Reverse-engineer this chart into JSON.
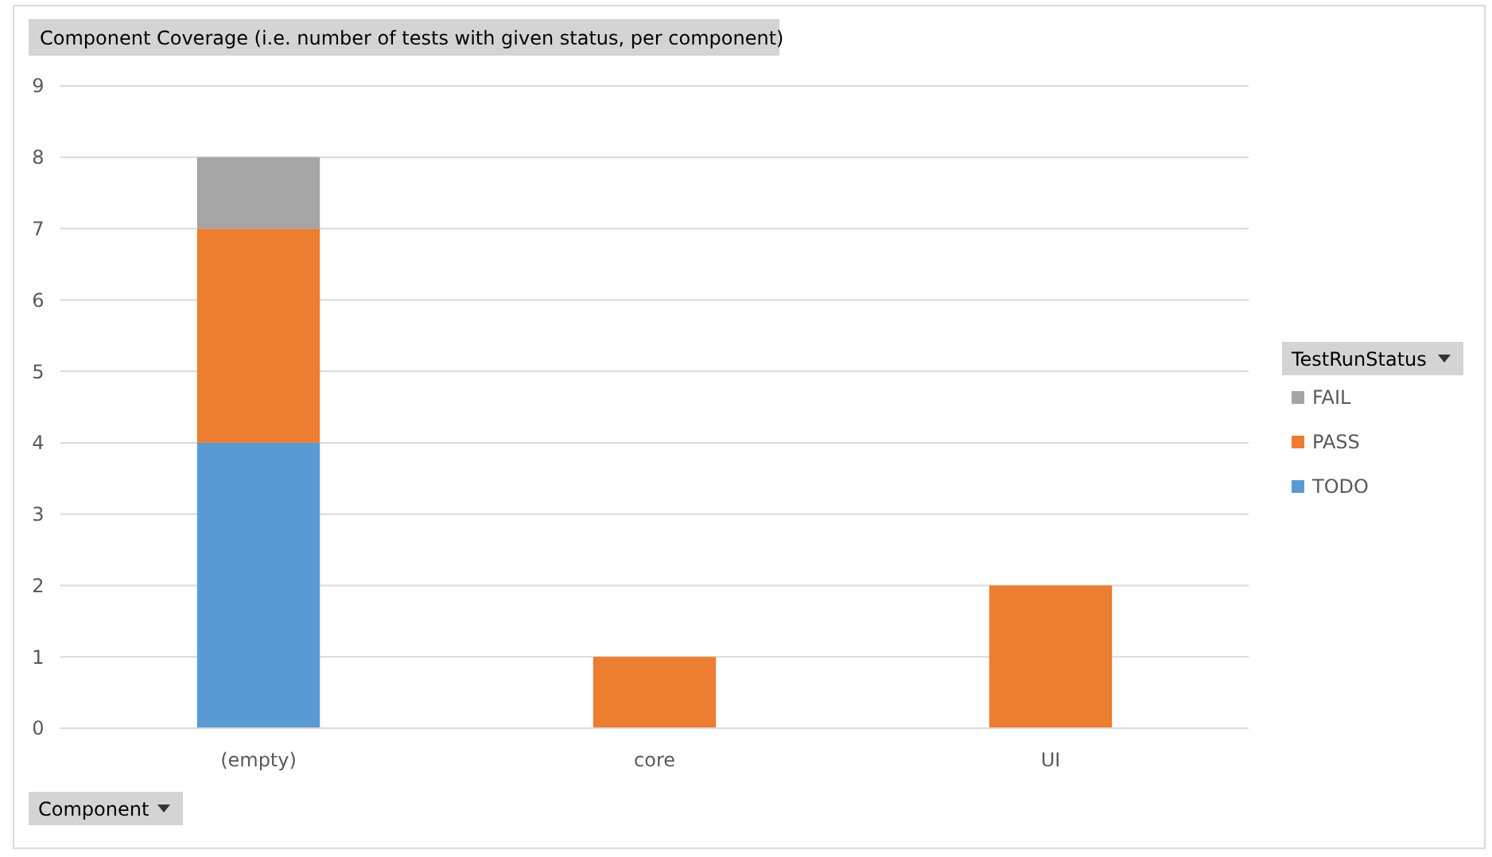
{
  "chart_data": {
    "type": "bar",
    "title": "Component  Coverage (i.e. number of tests  with given status, per component)",
    "xlabel": "Component",
    "legend_title": "TestRunStatus",
    "categories": [
      "(empty)",
      "core",
      "UI"
    ],
    "stacked": true,
    "series": [
      {
        "name": "TODO",
        "color": "#5b9bd5",
        "values": [
          4,
          null,
          null
        ]
      },
      {
        "name": "PASS",
        "color": "#ed7d31",
        "values": [
          3,
          1,
          2
        ]
      },
      {
        "name": "FAIL",
        "color": "#a5a5a5",
        "values": [
          1,
          null,
          null
        ]
      }
    ],
    "ylim": [
      0,
      9
    ],
    "yticks": [
      0,
      1,
      2,
      3,
      4,
      5,
      6,
      7,
      8,
      9
    ],
    "grid": "y",
    "legend": "right"
  }
}
